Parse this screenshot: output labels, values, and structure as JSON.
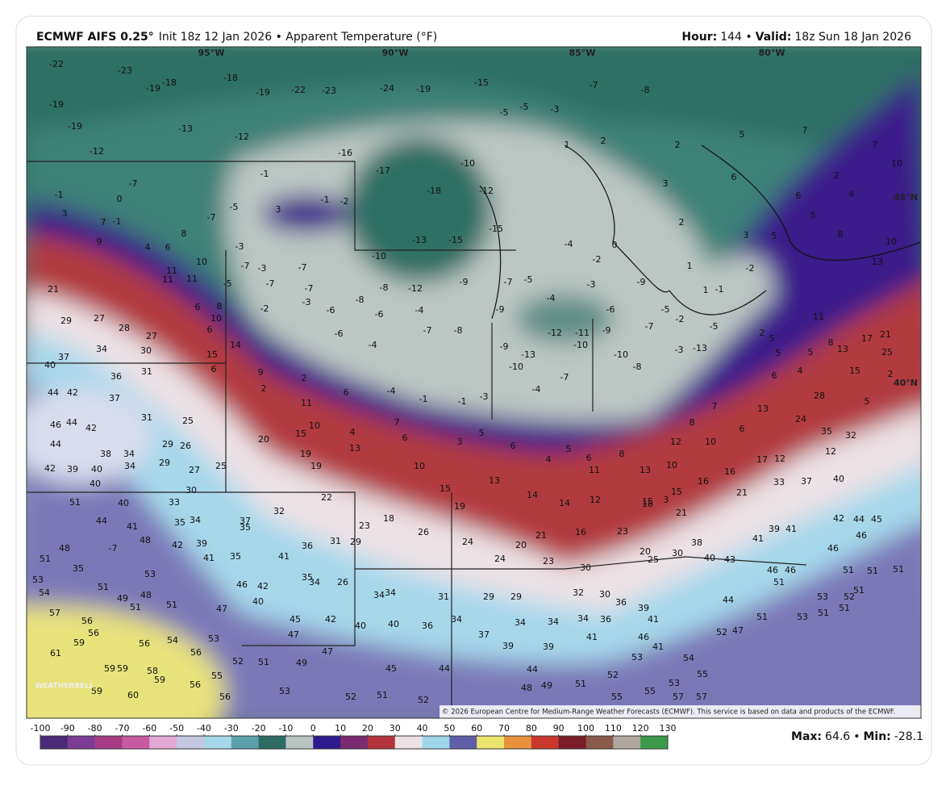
{
  "header": {
    "model": "ECMWF AIFS 0.25°",
    "details": "Init 18z 12 Jan 2026 • Apparent Temperature (°F)",
    "hour_label": "Hour:",
    "hour": "144 •",
    "valid_label": "Valid:",
    "valid": "18z Sun 18 Jan 2026"
  },
  "map": {
    "axis_labels": [
      "95°W",
      "90°W",
      "85°W",
      "80°W",
      "45°N",
      "40°N"
    ],
    "copyright": "© 2026 European Centre for Medium-Range Weather Forecasts (ECMWF). This service is based on data and products of the ECMWF.",
    "logo": "WEATHERBELL",
    "labels": [
      -22,
      -23,
      -19,
      -18,
      -18,
      -19,
      -22,
      -23,
      -24,
      -19,
      -15,
      -19,
      -19,
      -12,
      -13,
      -12,
      -16,
      -17,
      -18,
      -10,
      -12,
      -5,
      -5,
      -3,
      -7,
      -8,
      1,
      2,
      2,
      5,
      7,
      7,
      2,
      4,
      10,
      6,
      3,
      2,
      6,
      5,
      8,
      10,
      13,
      3,
      7,
      9,
      4,
      6,
      8,
      3,
      -1,
      -1,
      -2,
      -3,
      -3,
      -7,
      -10,
      -13,
      -15,
      -15,
      -7,
      -4,
      0,
      -2,
      21,
      29,
      27,
      28,
      27,
      30,
      34,
      37,
      40,
      36,
      31,
      44,
      42,
      37,
      31,
      25,
      46,
      44,
      42,
      44,
      38,
      34,
      29,
      26,
      34,
      29,
      27,
      25,
      42,
      39,
      40,
      40,
      30,
      20,
      15,
      19,
      19,
      22,
      13,
      18,
      10,
      15,
      19,
      13,
      14,
      14,
      12,
      23,
      15,
      21,
      21,
      33,
      37,
      40,
      51,
      44,
      40,
      33,
      41,
      35,
      34,
      35,
      32,
      23,
      26,
      24,
      24,
      20,
      21,
      16,
      23,
      30,
      20,
      25,
      30,
      38,
      40,
      43,
      41,
      39,
      41,
      42,
      44,
      45,
      46,
      46,
      51,
      48,
      53,
      54,
      57,
      56,
      56,
      56,
      54,
      56,
      53,
      59,
      59,
      58,
      59,
      61,
      59,
      59,
      60,
      56,
      55,
      56,
      52,
      51,
      49,
      53,
      47,
      45,
      44,
      52,
      51,
      52,
      37,
      39,
      39,
      44,
      48,
      49,
      51,
      52,
      55,
      55,
      53,
      55,
      57,
      57,
      54,
      47,
      52,
      44,
      51,
      53,
      51,
      51,
      51,
      52,
      53,
      51,
      46,
      46,
      51,
      51,
      51,
      34,
      31,
      29,
      29,
      32,
      30,
      36,
      39,
      41,
      46,
      41,
      53,
      41,
      34,
      36,
      34,
      34,
      36,
      34,
      40,
      40,
      42,
      45,
      47,
      40,
      42,
      46,
      47,
      51,
      51,
      49,
      48,
      53,
      51,
      35,
      34,
      35,
      34,
      26,
      29,
      31,
      36,
      41,
      41,
      35,
      37,
      39,
      42,
      48,
      -7,
      -4,
      -6,
      -7,
      -8,
      -9,
      -13,
      -12,
      -11,
      -10,
      -9,
      -10,
      -8,
      -10,
      -7,
      -4,
      -3,
      -1,
      -1,
      -4,
      -4,
      -6,
      -6,
      -3,
      -2,
      -5,
      -7,
      -7,
      -7,
      -8,
      -8,
      -12,
      -9,
      -9,
      -4,
      -5,
      -3,
      -9,
      -6,
      -7,
      -3,
      -13,
      -5,
      -5,
      -2,
      -1,
      -2,
      1,
      1,
      3,
      5,
      10,
      11,
      11,
      11,
      6,
      8,
      10,
      6,
      14,
      15,
      6,
      9,
      2,
      2,
      6,
      11,
      10,
      4,
      7,
      6,
      3,
      5,
      6,
      4,
      5,
      6,
      8,
      11,
      13,
      10,
      12,
      10,
      6,
      7,
      8,
      13,
      24,
      35,
      32,
      12,
      17,
      12,
      16,
      16,
      15,
      18,
      3,
      2,
      5,
      5,
      5,
      8,
      13,
      17,
      21,
      25,
      2,
      11,
      15,
      28,
      5,
      6,
      4,
      -7,
      -5,
      0,
      -1,
      -1,
      -7
    ]
  },
  "colorbar": {
    "ticks": [
      -100,
      -90,
      -80,
      -70,
      -60,
      -50,
      -40,
      -30,
      -20,
      -10,
      0,
      10,
      20,
      30,
      40,
      50,
      60,
      70,
      80,
      90,
      100,
      110,
      120,
      130
    ],
    "colors": [
      "#4a2a78",
      "#7c3b94",
      "#a63c86",
      "#c85aa2",
      "#e2a8d2",
      "#c6c8e2",
      "#a4d8ea",
      "#5aa0ad",
      "#2c6c62",
      "#b9c4c2",
      "#2e1a8e",
      "#7a2a70",
      "#b3343a",
      "#eee2e6",
      "#9fd6ea",
      "#5f5ea8",
      "#e9e46c",
      "#e8903a",
      "#c8382c",
      "#7a1c2a",
      "#8a5a4a",
      "#b0a8a0",
      "#3a9a4a"
    ]
  },
  "footer": {
    "max_label": "Max:",
    "max": 64.6,
    "separator": "•",
    "min_label": "Min:",
    "min": -28.1
  }
}
